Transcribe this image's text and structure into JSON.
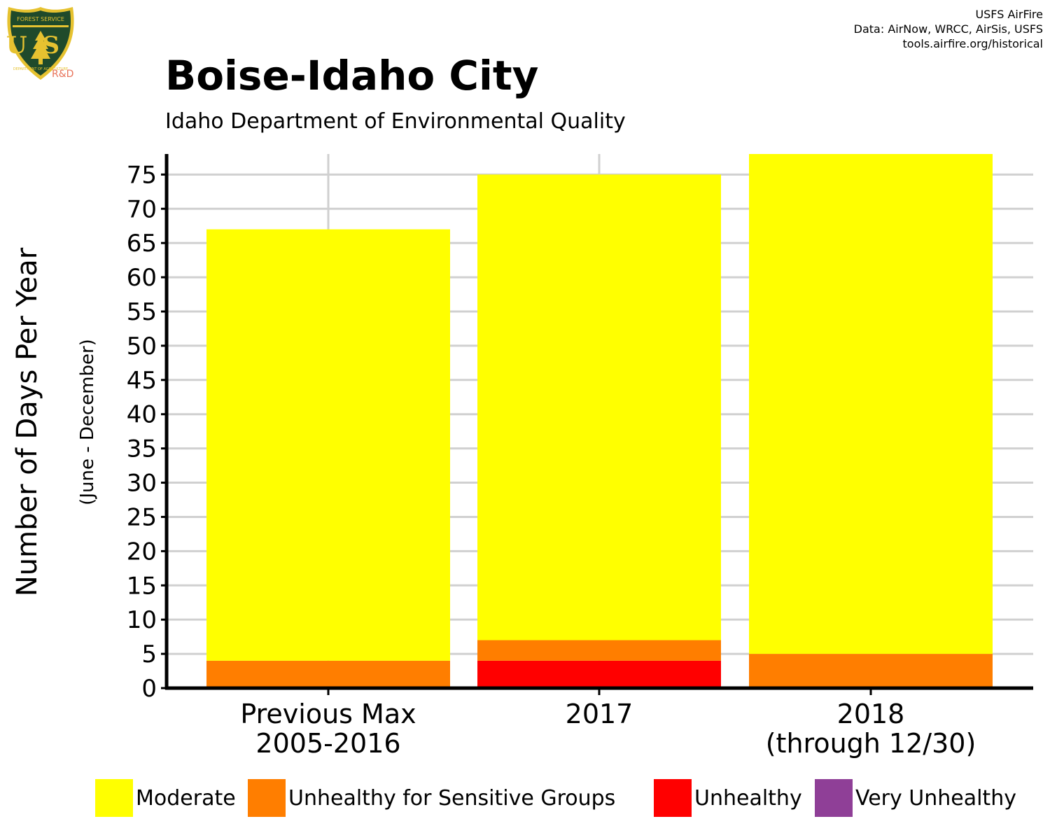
{
  "header": {
    "title": "Boise-Idaho City",
    "subtitle": "Idaho Department of Environmental Quality",
    "credits": [
      "USFS AirFire",
      "Data: AirNow, WRCC, AirSis, USFS",
      "tools.airfire.org/historical"
    ]
  },
  "logo": {
    "top_text": "FOREST SERVICE",
    "letters": "US",
    "bottom_text": "DEPARTMENT OF AGRICULTURE",
    "sub_label": "R&D"
  },
  "colors": {
    "moderate": "#ffff00",
    "usg": "#ff7e00",
    "unhealthy": "#ff0000",
    "very_unhealthy": "#8f3f97",
    "shield_green": "#1f4a2b",
    "shield_gold": "#e6c230"
  },
  "chart_data": {
    "type": "bar",
    "stacked": true,
    "title": "Boise-Idaho City",
    "subtitle": "Idaho Department of Environmental Quality",
    "ylabel": "Number of Days Per Year",
    "ylabel_sub": "(June - December)",
    "xlabel": "",
    "categories": [
      [
        "Previous Max",
        "2005-2016"
      ],
      [
        "2017"
      ],
      [
        "2018",
        "(through 12/30)"
      ]
    ],
    "ylim": [
      0,
      78
    ],
    "yticks": [
      0,
      5,
      10,
      15,
      20,
      25,
      30,
      35,
      40,
      45,
      50,
      55,
      60,
      65,
      70,
      75
    ],
    "grid": true,
    "legend_position": "bottom",
    "series": [
      {
        "name": "Unhealthy",
        "color": "#ff0000",
        "values": [
          0,
          4,
          0
        ]
      },
      {
        "name": "Unhealthy for Sensitive Groups",
        "color": "#ff7e00",
        "values": [
          4,
          3,
          5
        ]
      },
      {
        "name": "Moderate",
        "color": "#ffff00",
        "values": [
          63,
          68,
          73
        ]
      },
      {
        "name": "Very Unhealthy",
        "color": "#8f3f97",
        "values": [
          0,
          0,
          0
        ]
      }
    ],
    "legend": [
      "Moderate",
      "Unhealthy for Sensitive Groups",
      "Unhealthy",
      "Very Unhealthy"
    ]
  }
}
